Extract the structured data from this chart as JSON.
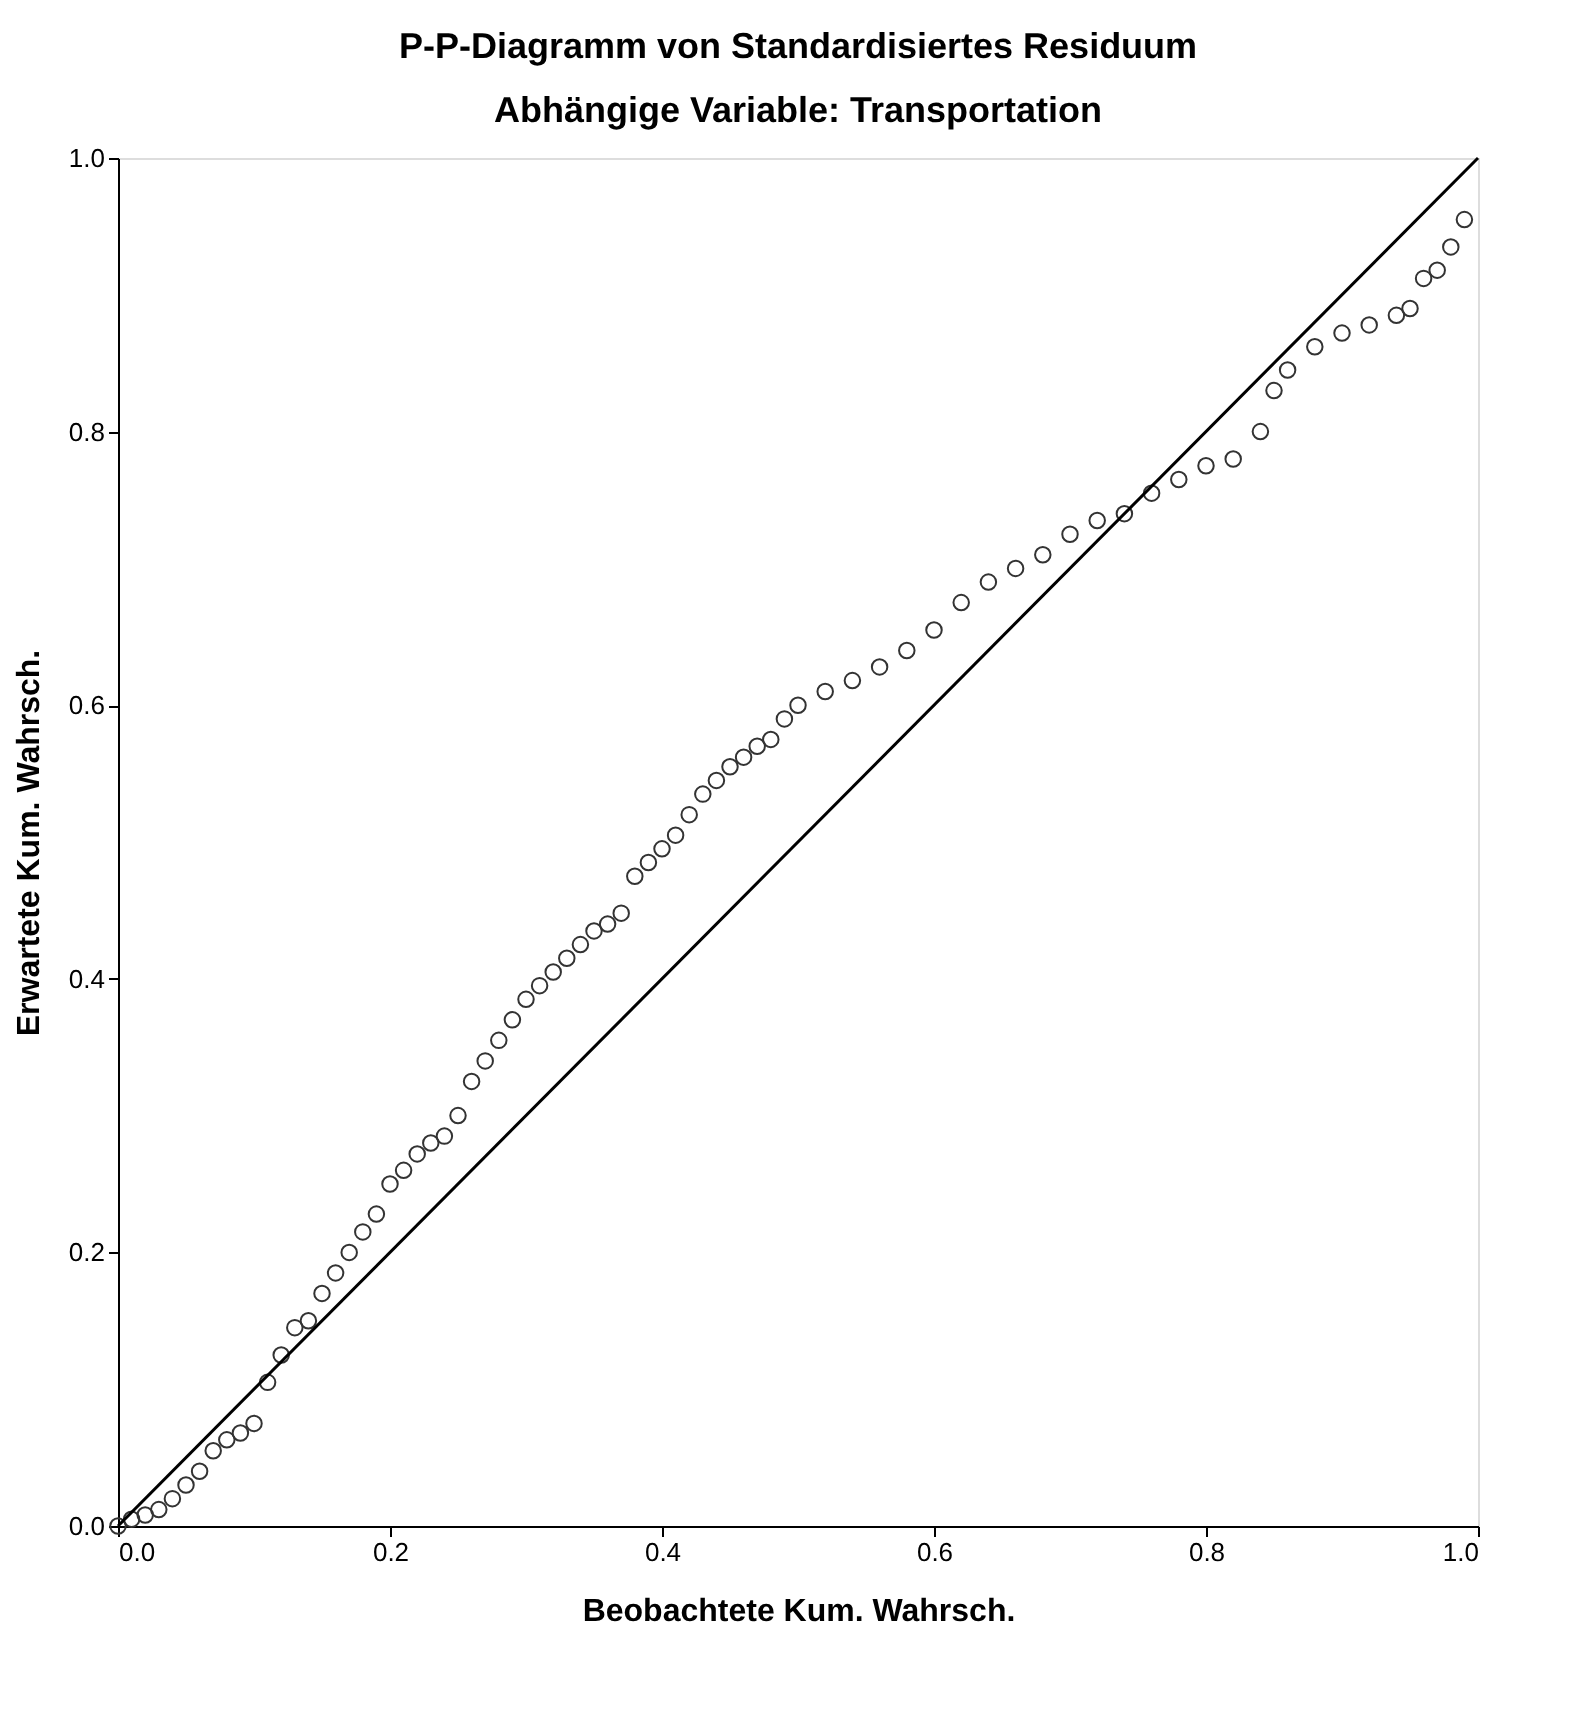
{
  "chart_data": {
    "type": "scatter",
    "title": "P-P-Diagramm von Standardisiertes Residuum",
    "subtitle": "Abhängige Variable: Transportation",
    "xlabel": "Beobachtete Kum. Wahrsch.",
    "ylabel": "Erwartete Kum. Wahrsch.",
    "xlim": [
      0,
      1
    ],
    "ylim": [
      0,
      1
    ],
    "xticks": [
      {
        "value": 0,
        "label": "0.0"
      },
      {
        "value": 0.2,
        "label": "0.2"
      },
      {
        "value": 0.4,
        "label": "0.4"
      },
      {
        "value": 0.6,
        "label": "0.6"
      },
      {
        "value": 0.8,
        "label": "0.8"
      },
      {
        "value": 1,
        "label": "1.0"
      }
    ],
    "yticks": [
      {
        "value": 0,
        "label": "0.0"
      },
      {
        "value": 0.2,
        "label": "0.2"
      },
      {
        "value": 0.4,
        "label": "0.4"
      },
      {
        "value": 0.6,
        "label": "0.6"
      },
      {
        "value": 0.8,
        "label": "0.8"
      },
      {
        "value": 1,
        "label": "1.0"
      }
    ],
    "grid": false,
    "series": [
      {
        "color": "#333333",
        "marker": "circle",
        "x": [
          0.0,
          0.01,
          0.02,
          0.03,
          0.04,
          0.05,
          0.06,
          0.07,
          0.08,
          0.09,
          0.1,
          0.11,
          0.12,
          0.13,
          0.14,
          0.15,
          0.16,
          0.17,
          0.18,
          0.19,
          0.2,
          0.21,
          0.22,
          0.23,
          0.24,
          0.25,
          0.26,
          0.27,
          0.28,
          0.29,
          0.3,
          0.31,
          0.32,
          0.33,
          0.34,
          0.35,
          0.36,
          0.37,
          0.38,
          0.39,
          0.4,
          0.41,
          0.42,
          0.43,
          0.44,
          0.45,
          0.46,
          0.47,
          0.48,
          0.49,
          0.5,
          0.52,
          0.54,
          0.56,
          0.58,
          0.6,
          0.62,
          0.64,
          0.66,
          0.68,
          0.7,
          0.72,
          0.74,
          0.76,
          0.78,
          0.8,
          0.82,
          0.84,
          0.85,
          0.86,
          0.88,
          0.9,
          0.92,
          0.94,
          0.95,
          0.96,
          0.97,
          0.98,
          0.99
        ],
        "values": [
          0.0,
          0.005,
          0.008,
          0.012,
          0.02,
          0.03,
          0.04,
          0.055,
          0.063,
          0.068,
          0.075,
          0.105,
          0.125,
          0.145,
          0.15,
          0.17,
          0.185,
          0.2,
          0.215,
          0.228,
          0.25,
          0.26,
          0.272,
          0.28,
          0.285,
          0.3,
          0.325,
          0.34,
          0.355,
          0.37,
          0.385,
          0.395,
          0.405,
          0.415,
          0.425,
          0.435,
          0.44,
          0.448,
          0.475,
          0.485,
          0.495,
          0.505,
          0.52,
          0.535,
          0.545,
          0.555,
          0.562,
          0.57,
          0.575,
          0.59,
          0.6,
          0.61,
          0.618,
          0.628,
          0.64,
          0.655,
          0.675,
          0.69,
          0.7,
          0.71,
          0.725,
          0.735,
          0.74,
          0.755,
          0.765,
          0.775,
          0.78,
          0.8,
          0.83,
          0.845,
          0.862,
          0.872,
          0.878,
          0.885,
          0.89,
          0.912,
          0.918,
          0.935,
          0.955
        ]
      },
      {
        "type": "line",
        "color": "#000000",
        "marker": "none",
        "line_style": "solid",
        "x": [
          0,
          1
        ],
        "values": [
          0,
          1
        ]
      }
    ]
  }
}
